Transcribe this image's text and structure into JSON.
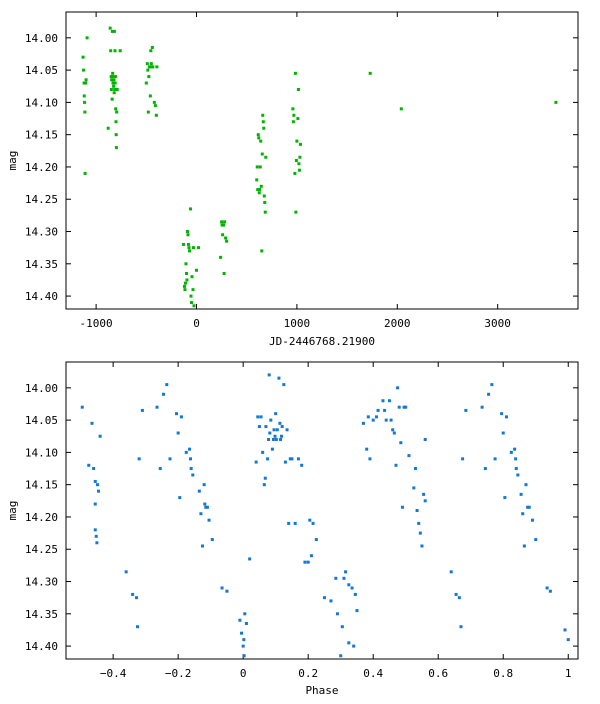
{
  "chart_data": [
    {
      "type": "scatter",
      "xlabel": "JD-2446768.21900",
      "ylabel": "mag",
      "xlim": [
        -1300,
        3800
      ],
      "ylim": [
        14.42,
        13.96
      ],
      "y_inverted": true,
      "xticks": [
        -1000,
        0,
        1000,
        2000,
        3000
      ],
      "xtick_labels": [
        "-1000",
        "0",
        "1000",
        "2000",
        "3000"
      ],
      "yticks": [
        14.0,
        14.05,
        14.1,
        14.15,
        14.2,
        14.25,
        14.3,
        14.35,
        14.4
      ],
      "ytick_labels": [
        "14.00",
        "14.05",
        "14.10",
        "14.15",
        "14.20",
        "14.25",
        "14.30",
        "14.35",
        "14.40"
      ],
      "grid": false,
      "marker_color": "#00b400",
      "points": [
        [
          -1130,
          14.03
        ],
        [
          -1125,
          14.05
        ],
        [
          -1120,
          14.07
        ],
        [
          -1118,
          14.09
        ],
        [
          -1115,
          14.1
        ],
        [
          -1112,
          14.115
        ],
        [
          -1110,
          14.21
        ],
        [
          -1105,
          14.07
        ],
        [
          -1100,
          14.065
        ],
        [
          -1090,
          14.0
        ],
        [
          -880,
          14.14
        ],
        [
          -860,
          13.985
        ],
        [
          -855,
          14.02
        ],
        [
          -850,
          14.06
        ],
        [
          -848,
          14.08
        ],
        [
          -845,
          14.065
        ],
        [
          -840,
          14.095
        ],
        [
          -838,
          13.99
        ],
        [
          -835,
          14.055
        ],
        [
          -832,
          14.07
        ],
        [
          -830,
          14.06
        ],
        [
          -826,
          14.075
        ],
        [
          -822,
          14.065
        ],
        [
          -820,
          14.085
        ],
        [
          -818,
          13.99
        ],
        [
          -815,
          14.08
        ],
        [
          -812,
          14.02
        ],
        [
          -810,
          14.07
        ],
        [
          -808,
          14.06
        ],
        [
          -805,
          14.11
        ],
        [
          -802,
          14.13
        ],
        [
          -800,
          14.15
        ],
        [
          -798,
          14.17
        ],
        [
          -795,
          14.115
        ],
        [
          -790,
          14.08
        ],
        [
          -760,
          14.02
        ],
        [
          -500,
          14.07
        ],
        [
          -490,
          14.04
        ],
        [
          -485,
          14.05
        ],
        [
          -480,
          14.115
        ],
        [
          -475,
          14.06
        ],
        [
          -470,
          14.045
        ],
        [
          -460,
          14.09
        ],
        [
          -455,
          14.02
        ],
        [
          -450,
          14.04
        ],
        [
          -445,
          14.045
        ],
        [
          -440,
          14.015
        ],
        [
          -435,
          14.045
        ],
        [
          -420,
          14.1
        ],
        [
          -410,
          14.105
        ],
        [
          -400,
          14.12
        ],
        [
          -395,
          14.045
        ],
        [
          -130,
          14.32
        ],
        [
          -120,
          14.385
        ],
        [
          -115,
          14.39
        ],
        [
          -110,
          14.38
        ],
        [
          -105,
          14.35
        ],
        [
          -100,
          14.365
        ],
        [
          -95,
          14.375
        ],
        [
          -90,
          14.3
        ],
        [
          -85,
          14.305
        ],
        [
          -80,
          14.32
        ],
        [
          -75,
          14.325
        ],
        [
          -70,
          14.33
        ],
        [
          -60,
          14.265
        ],
        [
          -55,
          14.4
        ],
        [
          -50,
          14.41
        ],
        [
          -45,
          14.37
        ],
        [
          -35,
          14.39
        ],
        [
          -30,
          14.325
        ],
        [
          -25,
          14.415
        ],
        [
          0,
          14.36
        ],
        [
          20,
          14.325
        ],
        [
          240,
          14.34
        ],
        [
          250,
          14.285
        ],
        [
          255,
          14.29
        ],
        [
          260,
          14.305
        ],
        [
          270,
          14.29
        ],
        [
          275,
          14.365
        ],
        [
          280,
          14.285
        ],
        [
          290,
          14.31
        ],
        [
          300,
          14.315
        ],
        [
          600,
          14.22
        ],
        [
          605,
          14.2
        ],
        [
          610,
          14.235
        ],
        [
          615,
          14.15
        ],
        [
          620,
          14.155
        ],
        [
          625,
          14.24
        ],
        [
          630,
          14.235
        ],
        [
          635,
          14.2
        ],
        [
          640,
          14.16
        ],
        [
          645,
          14.23
        ],
        [
          650,
          14.33
        ],
        [
          655,
          14.18
        ],
        [
          660,
          14.12
        ],
        [
          665,
          14.13
        ],
        [
          670,
          14.14
        ],
        [
          675,
          14.245
        ],
        [
          680,
          14.255
        ],
        [
          685,
          14.27
        ],
        [
          690,
          14.185
        ],
        [
          960,
          14.11
        ],
        [
          965,
          14.13
        ],
        [
          970,
          14.12
        ],
        [
          980,
          14.21
        ],
        [
          985,
          14.055
        ],
        [
          990,
          14.27
        ],
        [
          995,
          14.19
        ],
        [
          1000,
          14.16
        ],
        [
          1010,
          14.125
        ],
        [
          1015,
          14.08
        ],
        [
          1020,
          14.195
        ],
        [
          1025,
          14.205
        ],
        [
          1030,
          14.185
        ],
        [
          1035,
          14.165
        ],
        [
          1730,
          14.055
        ],
        [
          2040,
          14.11
        ],
        [
          3580,
          14.1
        ]
      ]
    },
    {
      "type": "scatter",
      "xlabel": "Phase",
      "ylabel": "mag",
      "xlim": [
        -0.545,
        1.03
      ],
      "ylim": [
        14.42,
        13.96
      ],
      "y_inverted": true,
      "xticks": [
        -0.4,
        -0.2,
        0,
        0.2,
        0.4,
        0.6,
        0.8,
        1
      ],
      "xtick_labels": [
        "−0.4",
        "−0.2",
        "0",
        "0.2",
        "0.4",
        "0.6",
        "0.8",
        "1"
      ],
      "yticks": [
        14.0,
        14.05,
        14.1,
        14.15,
        14.2,
        14.25,
        14.3,
        14.35,
        14.4
      ],
      "ytick_labels": [
        "14.00",
        "14.05",
        "14.10",
        "14.15",
        "14.20",
        "14.25",
        "14.30",
        "14.35",
        "14.40"
      ],
      "grid": false,
      "marker_color": "#1478d2",
      "points": [
        [
          -0.495,
          14.03
        ],
        [
          -0.475,
          14.12
        ],
        [
          -0.465,
          14.055
        ],
        [
          -0.46,
          14.125
        ],
        [
          -0.455,
          14.145
        ],
        [
          -0.455,
          14.18
        ],
        [
          -0.455,
          14.22
        ],
        [
          -0.452,
          14.23
        ],
        [
          -0.45,
          14.24
        ],
        [
          -0.448,
          14.15
        ],
        [
          -0.445,
          14.16
        ],
        [
          -0.44,
          14.075
        ],
        [
          -0.36,
          14.285
        ],
        [
          -0.34,
          14.32
        ],
        [
          -0.328,
          14.325
        ],
        [
          -0.325,
          14.37
        ],
        [
          -0.32,
          14.11
        ],
        [
          -0.31,
          14.035
        ],
        [
          -0.265,
          14.03
        ],
        [
          -0.255,
          14.125
        ],
        [
          -0.245,
          14.01
        ],
        [
          -0.235,
          13.995
        ],
        [
          -0.225,
          14.11
        ],
        [
          -0.205,
          14.04
        ],
        [
          -0.2,
          14.07
        ],
        [
          -0.195,
          14.17
        ],
        [
          -0.19,
          14.045
        ],
        [
          -0.175,
          14.1
        ],
        [
          -0.165,
          14.095
        ],
        [
          -0.162,
          14.11
        ],
        [
          -0.16,
          14.125
        ],
        [
          -0.155,
          14.135
        ],
        [
          -0.135,
          14.16
        ],
        [
          -0.13,
          14.195
        ],
        [
          -0.125,
          14.245
        ],
        [
          -0.12,
          14.15
        ],
        [
          -0.118,
          14.18
        ],
        [
          -0.115,
          14.185
        ],
        [
          -0.11,
          14.185
        ],
        [
          -0.105,
          14.205
        ],
        [
          -0.095,
          14.235
        ],
        [
          -0.065,
          14.31
        ],
        [
          -0.05,
          14.315
        ],
        [
          -0.01,
          14.36
        ],
        [
          -0.005,
          14.38
        ],
        [
          0,
          14.4
        ],
        [
          0.002,
          14.39
        ],
        [
          0.003,
          14.415
        ],
        [
          0.005,
          14.35
        ],
        [
          0.01,
          14.365
        ],
        [
          0.02,
          14.265
        ],
        [
          0.04,
          14.115
        ],
        [
          0.045,
          14.045
        ],
        [
          0.05,
          14.06
        ],
        [
          0.055,
          14.045
        ],
        [
          0.06,
          14.1
        ],
        [
          0.065,
          14.15
        ],
        [
          0.068,
          14.14
        ],
        [
          0.07,
          14.06
        ],
        [
          0.075,
          14.11
        ],
        [
          0.078,
          14.08
        ],
        [
          0.08,
          13.98
        ],
        [
          0.082,
          14.07
        ],
        [
          0.085,
          14.05
        ],
        [
          0.09,
          14.095
        ],
        [
          0.093,
          14.08
        ],
        [
          0.095,
          14.065
        ],
        [
          0.098,
          14.075
        ],
        [
          0.1,
          14.04
        ],
        [
          0.102,
          14.08
        ],
        [
          0.105,
          14.065
        ],
        [
          0.11,
          13.985
        ],
        [
          0.113,
          14.055
        ],
        [
          0.115,
          14.08
        ],
        [
          0.118,
          14.075
        ],
        [
          0.12,
          14.06
        ],
        [
          0.125,
          13.995
        ],
        [
          0.13,
          14.115
        ],
        [
          0.135,
          14.065
        ],
        [
          0.14,
          14.21
        ],
        [
          0.145,
          14.11
        ],
        [
          0.15,
          14.11
        ],
        [
          0.16,
          14.21
        ],
        [
          0.17,
          14.11
        ],
        [
          0.18,
          14.12
        ],
        [
          0.19,
          14.27
        ],
        [
          0.2,
          14.27
        ],
        [
          0.205,
          14.205
        ],
        [
          0.21,
          14.26
        ],
        [
          0.215,
          14.21
        ],
        [
          0.225,
          14.235
        ],
        [
          0.25,
          14.325
        ],
        [
          0.27,
          14.33
        ],
        [
          0.285,
          14.295
        ],
        [
          0.29,
          14.35
        ],
        [
          0.3,
          14.415
        ],
        [
          0.305,
          14.37
        ],
        [
          0.31,
          14.295
        ],
        [
          0.315,
          14.285
        ],
        [
          0.325,
          14.395
        ],
        [
          0.325,
          14.305
        ],
        [
          0.335,
          14.31
        ],
        [
          0.34,
          14.4
        ],
        [
          0.345,
          14.32
        ],
        [
          0.35,
          14.345
        ],
        [
          0.37,
          14.055
        ],
        [
          0.38,
          14.095
        ],
        [
          0.385,
          14.045
        ],
        [
          0.39,
          14.11
        ],
        [
          0.4,
          14.05
        ],
        [
          0.41,
          14.045
        ],
        [
          0.415,
          14.035
        ],
        [
          0.43,
          14.02
        ],
        [
          0.435,
          14.035
        ],
        [
          0.44,
          14.05
        ],
        [
          0.45,
          14.02
        ],
        [
          0.455,
          14.05
        ],
        [
          0.46,
          14.065
        ],
        [
          0.465,
          14.07
        ],
        [
          0.47,
          14.12
        ],
        [
          0.475,
          14.0
        ],
        [
          0.48,
          14.03
        ],
        [
          0.485,
          14.085
        ],
        [
          0.49,
          14.185
        ],
        [
          0.495,
          14.03
        ],
        [
          0.5,
          14.03
        ],
        [
          0.51,
          14.105
        ],
        [
          0.525,
          14.155
        ],
        [
          0.53,
          14.125
        ],
        [
          0.535,
          14.19
        ],
        [
          0.54,
          14.21
        ],
        [
          0.545,
          14.225
        ],
        [
          0.55,
          14.245
        ],
        [
          0.555,
          14.165
        ],
        [
          0.56,
          14.08
        ],
        [
          0.56,
          14.175
        ],
        [
          0.64,
          14.285
        ],
        [
          0.655,
          14.32
        ],
        [
          0.665,
          14.325
        ],
        [
          0.67,
          14.37
        ],
        [
          0.675,
          14.11
        ],
        [
          0.685,
          14.035
        ],
        [
          0.735,
          14.03
        ],
        [
          0.745,
          14.125
        ],
        [
          0.755,
          14.01
        ],
        [
          0.765,
          13.995
        ],
        [
          0.775,
          14.11
        ],
        [
          0.795,
          14.04
        ],
        [
          0.8,
          14.07
        ],
        [
          0.805,
          14.17
        ],
        [
          0.81,
          14.045
        ],
        [
          0.825,
          14.1
        ],
        [
          0.835,
          14.095
        ],
        [
          0.838,
          14.11
        ],
        [
          0.84,
          14.125
        ],
        [
          0.845,
          14.135
        ],
        [
          0.855,
          14.165
        ],
        [
          0.86,
          14.195
        ],
        [
          0.865,
          14.245
        ],
        [
          0.87,
          14.15
        ],
        [
          0.875,
          14.185
        ],
        [
          0.88,
          14.185
        ],
        [
          0.89,
          14.205
        ],
        [
          0.9,
          14.235
        ],
        [
          0.935,
          14.31
        ],
        [
          0.945,
          14.315
        ],
        [
          0.99,
          14.375
        ],
        [
          1.0,
          14.39
        ]
      ]
    }
  ]
}
